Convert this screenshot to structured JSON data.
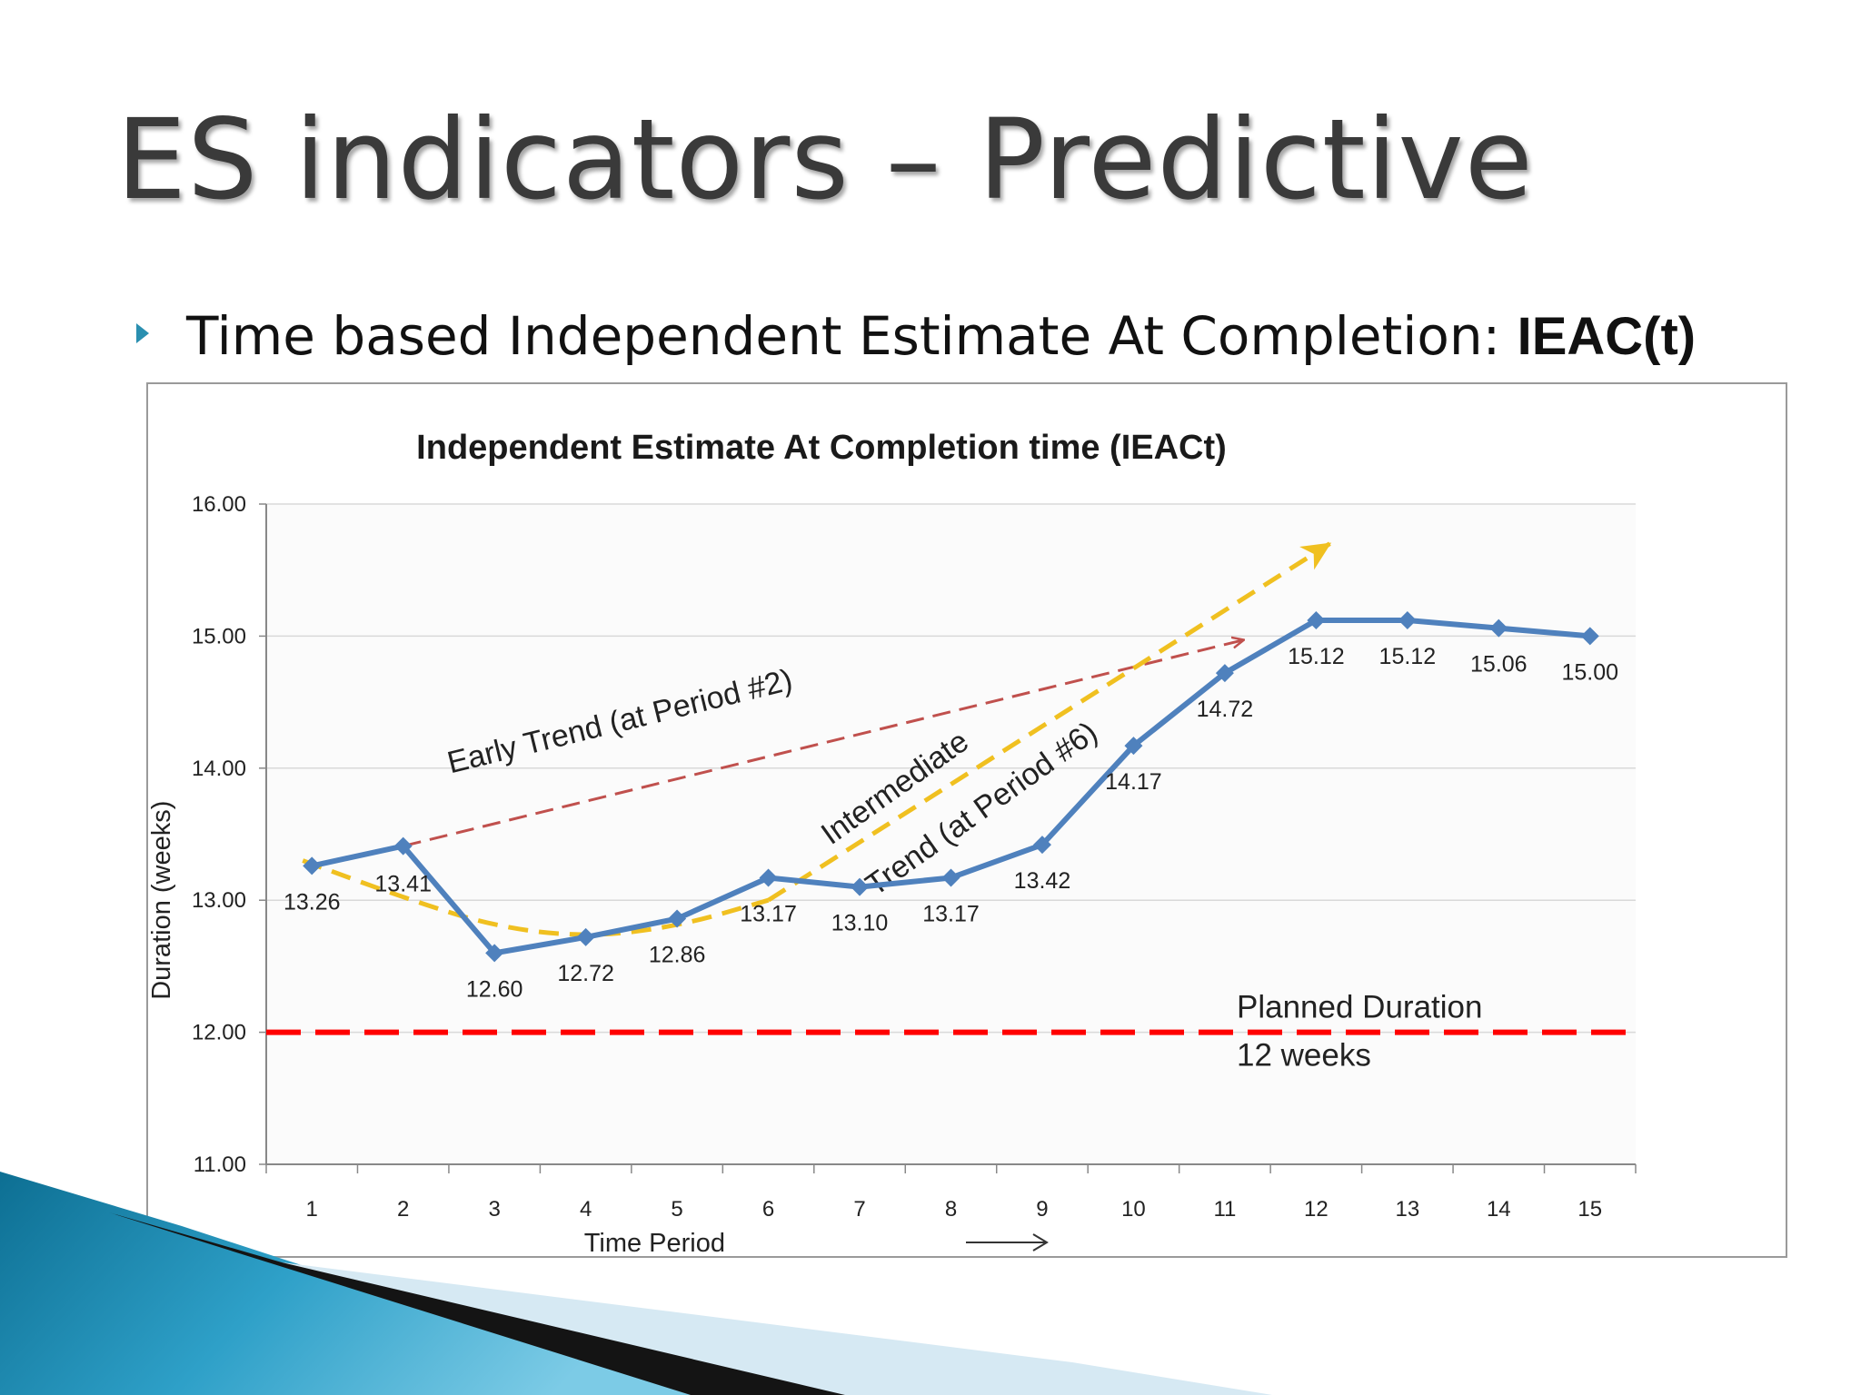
{
  "slide": {
    "title": "ES indicators – Predictive",
    "subtitle_prefix": "Time based Independent Estimate At Completion: ",
    "subtitle_emphasis": "IEAC(t)"
  },
  "colors": {
    "series": "#4f81bd",
    "early_trend": "#c0504d",
    "intermediate_trend": "#f0c020",
    "planned": "#ff0000",
    "grid": "#d9d9d9"
  },
  "chart_data": {
    "type": "line",
    "title": "Independent Estimate At Completion time  (IEACt)",
    "xlabel": "Time Period",
    "ylabel": "Duration (weeks)",
    "ylim": [
      11,
      16
    ],
    "yticks": [
      "11.00",
      "12.00",
      "13.00",
      "14.00",
      "15.00",
      "16.00"
    ],
    "categories": [
      "1",
      "2",
      "3",
      "4",
      "5",
      "6",
      "7",
      "8",
      "9",
      "10",
      "11",
      "12",
      "13",
      "14",
      "15"
    ],
    "series": [
      {
        "name": "IEACt",
        "values": [
          13.26,
          13.41,
          12.6,
          12.72,
          12.86,
          13.17,
          13.1,
          13.17,
          13.42,
          14.17,
          14.72,
          15.12,
          15.12,
          15.06,
          15.0
        ],
        "labels": [
          "13.26",
          "13.41",
          "12.60",
          "12.72",
          "12.86",
          "13.17",
          "13.10",
          "13.17",
          "13.42",
          "14.17",
          "14.72",
          "15.12",
          "15.12",
          "15.06",
          "15.00"
        ]
      }
    ],
    "planned": {
      "value": 12,
      "label_line1": "Planned Duration",
      "label_line2": "12 weeks"
    },
    "early_trend": {
      "label": "Early Trend (at Period #2)",
      "from": [
        2,
        13.41
      ],
      "to": [
        11.2,
        14.97
      ]
    },
    "intermediate_trend": {
      "label_line1": "Intermediate",
      "label_line2": "Trend (at Period #6)",
      "curve": [
        [
          0.9,
          13.3
        ],
        [
          2,
          13.02
        ],
        [
          3,
          12.8
        ],
        [
          4,
          12.72
        ],
        [
          5,
          12.8
        ],
        [
          6,
          13.0
        ]
      ],
      "arrow_from": [
        6,
        13.0
      ],
      "arrow_to": [
        12.15,
        15.7
      ]
    }
  }
}
